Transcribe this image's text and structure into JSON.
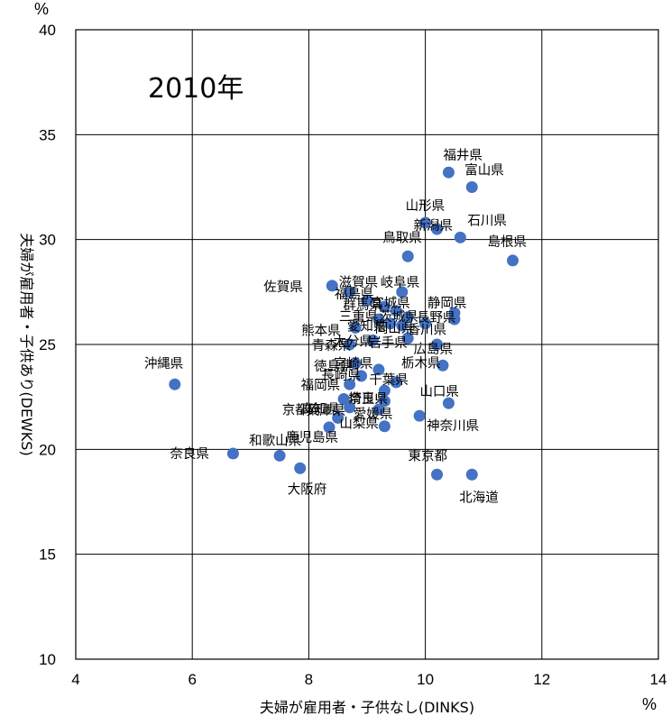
{
  "chart_data": {
    "type": "scatter",
    "annotation": "2010年",
    "xlabel": "夫婦が雇用者・子供なし(DINKS)",
    "ylabel": "夫婦が雇用者・子供あり(DEWKS)",
    "x_unit": "%",
    "y_unit": "%",
    "xlim": [
      4,
      14
    ],
    "ylim": [
      10,
      40
    ],
    "xticks": [
      "4",
      "6",
      "8",
      "10",
      "12",
      "14"
    ],
    "yticks": [
      "10",
      "15",
      "20",
      "25",
      "30",
      "35",
      "40"
    ],
    "grid": true,
    "marker_color": "#4472c4",
    "points": [
      {
        "label": "福井県",
        "x": 10.4,
        "y": 33.2
      },
      {
        "label": "富山県",
        "x": 10.8,
        "y": 32.5
      },
      {
        "label": "山形県",
        "x": 10.0,
        "y": 30.8
      },
      {
        "label": "新潟県",
        "x": 10.2,
        "y": 30.5
      },
      {
        "label": "石川県",
        "x": 10.6,
        "y": 30.1
      },
      {
        "label": "鳥取県",
        "x": 9.7,
        "y": 29.2
      },
      {
        "label": "島根県",
        "x": 11.5,
        "y": 29.0
      },
      {
        "label": "佐賀県",
        "x": 8.4,
        "y": 27.8
      },
      {
        "label": "滋賀県",
        "x": 8.7,
        "y": 27.5
      },
      {
        "label": "岐阜県",
        "x": 9.6,
        "y": 27.5
      },
      {
        "label": "静岡県",
        "x": 10.5,
        "y": 26.5
      },
      {
        "label": "長野県",
        "x": 10.5,
        "y": 26.2
      },
      {
        "label": "群馬県",
        "x": 9.3,
        "y": 26.8
      },
      {
        "label": "福島県",
        "x": 9.0,
        "y": 27.1
      },
      {
        "label": "宮城県",
        "x": 9.5,
        "y": 26.6
      },
      {
        "label": "茨城県",
        "x": 9.7,
        "y": 26.3
      },
      {
        "label": "三重県",
        "x": 9.2,
        "y": 26.2
      },
      {
        "label": "香川県",
        "x": 10.0,
        "y": 26.0
      },
      {
        "label": "愛知県",
        "x": 9.4,
        "y": 26.0
      },
      {
        "label": "岡山県",
        "x": 9.6,
        "y": 25.9
      },
      {
        "label": "熊本県",
        "x": 8.8,
        "y": 25.8
      },
      {
        "label": "大分県",
        "x": 9.1,
        "y": 25.2
      },
      {
        "label": "青森県",
        "x": 8.7,
        "y": 25.0
      },
      {
        "label": "岩手県",
        "x": 9.7,
        "y": 25.3
      },
      {
        "label": "広島県",
        "x": 10.2,
        "y": 25.0
      },
      {
        "label": "徳島県",
        "x": 8.8,
        "y": 24.1
      },
      {
        "label": "宮崎県",
        "x": 9.2,
        "y": 23.8
      },
      {
        "label": "栃木県",
        "x": 10.3,
        "y": 24.0
      },
      {
        "label": "長崎県",
        "x": 8.9,
        "y": 23.5
      },
      {
        "label": "福岡県",
        "x": 8.7,
        "y": 23.1
      },
      {
        "label": "千葉県",
        "x": 9.5,
        "y": 23.2
      },
      {
        "label": "埼玉県",
        "x": 9.3,
        "y": 22.8
      },
      {
        "label": "高知県",
        "x": 8.6,
        "y": 22.4
      },
      {
        "label": "山口県",
        "x": 10.4,
        "y": 22.2
      },
      {
        "label": "奈良県",
        "x": 9.3,
        "y": 22.3
      },
      {
        "label": "兵庫県",
        "x": 8.7,
        "y": 22.0
      },
      {
        "label": "愛媛県",
        "x": 9.2,
        "y": 21.9
      },
      {
        "label": "京都府",
        "x": 8.5,
        "y": 21.5
      },
      {
        "label": "神奈川県",
        "x": 9.9,
        "y": 21.6
      },
      {
        "label": "山梨県",
        "x": 9.3,
        "y": 21.1
      },
      {
        "label": "鹿児島県",
        "x": 8.35,
        "y": 21.05
      },
      {
        "label": "沖縄県",
        "x": 5.7,
        "y": 23.1
      },
      {
        "label": "奈良県",
        "x": 6.7,
        "y": 19.8
      },
      {
        "label": "和歌山県",
        "x": 7.5,
        "y": 19.7
      },
      {
        "label": "大阪府",
        "x": 7.85,
        "y": 19.1
      },
      {
        "label": "東京都",
        "x": 10.2,
        "y": 18.8
      },
      {
        "label": "北海道",
        "x": 10.8,
        "y": 18.8
      }
    ]
  }
}
